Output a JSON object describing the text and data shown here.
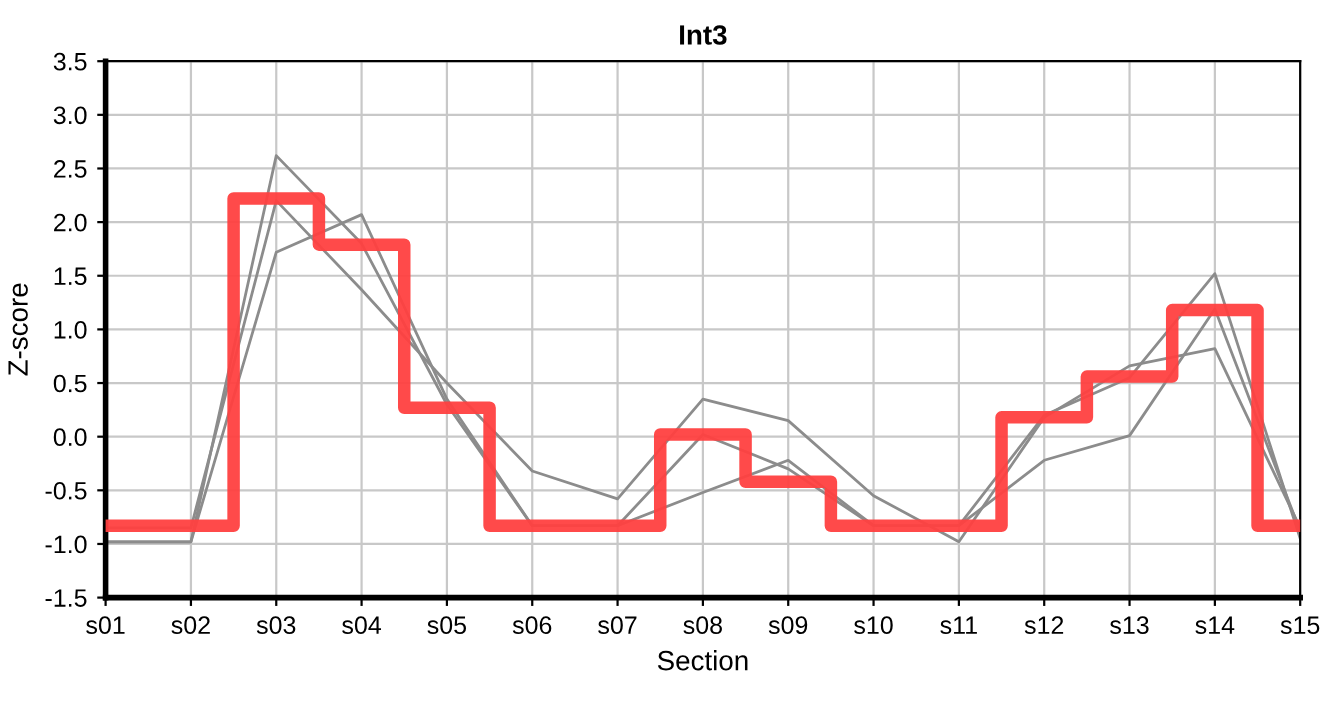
{
  "chart_data": {
    "type": "line",
    "title": "Int3",
    "xlabel": "Section",
    "ylabel": "Z-score",
    "categories": [
      "s01",
      "s02",
      "s03",
      "s04",
      "s05",
      "s06",
      "s07",
      "s08",
      "s09",
      "s10",
      "s11",
      "s12",
      "s13",
      "s14",
      "s15"
    ],
    "series": [
      {
        "color": "#8c8c8c",
        "values": [
          -0.98,
          -0.98,
          2.62,
          1.8,
          0.3,
          -0.83,
          -0.83,
          0.02,
          -0.3,
          -0.83,
          -0.83,
          0.2,
          0.55,
          1.52,
          -0.95
        ]
      },
      {
        "color": "#8c8c8c",
        "values": [
          -0.85,
          -0.85,
          2.2,
          1.37,
          0.5,
          -0.32,
          -0.58,
          0.35,
          0.15,
          -0.55,
          -0.98,
          0.18,
          0.66,
          0.82,
          -0.85
        ]
      },
      {
        "color": "#8c8c8c",
        "values": [
          -0.98,
          -0.98,
          1.72,
          2.07,
          0.35,
          -0.83,
          -0.83,
          -0.52,
          -0.22,
          -0.83,
          -0.83,
          -0.22,
          0.01,
          1.19,
          -0.88
        ]
      },
      {
        "type": "step",
        "color": "#ff4040",
        "values": [
          -0.83,
          -0.83,
          2.22,
          1.79,
          0.27,
          -0.83,
          -0.83,
          0.02,
          -0.42,
          -0.83,
          -0.83,
          0.18,
          0.56,
          1.18,
          -0.83
        ]
      }
    ],
    "ylim": [
      -1.5,
      3.5
    ],
    "yticks": [
      {
        "value": -1.5,
        "label": "-1.5"
      },
      {
        "value": -1.0,
        "label": "-1.0"
      },
      {
        "value": -0.5,
        "label": "-0.5"
      },
      {
        "value": 0,
        "label": "0.0"
      },
      {
        "value": 0.5,
        "label": "0.5"
      },
      {
        "value": 1.0,
        "label": "1.0"
      },
      {
        "value": 1.5,
        "label": "1.5"
      },
      {
        "value": 2.0,
        "label": "2.0"
      },
      {
        "value": 2.5,
        "label": "2.5"
      },
      {
        "value": 3.0,
        "label": "3.0"
      },
      {
        "value": 3.5,
        "label": "3.5"
      }
    ],
    "grid": true,
    "legend": false
  }
}
